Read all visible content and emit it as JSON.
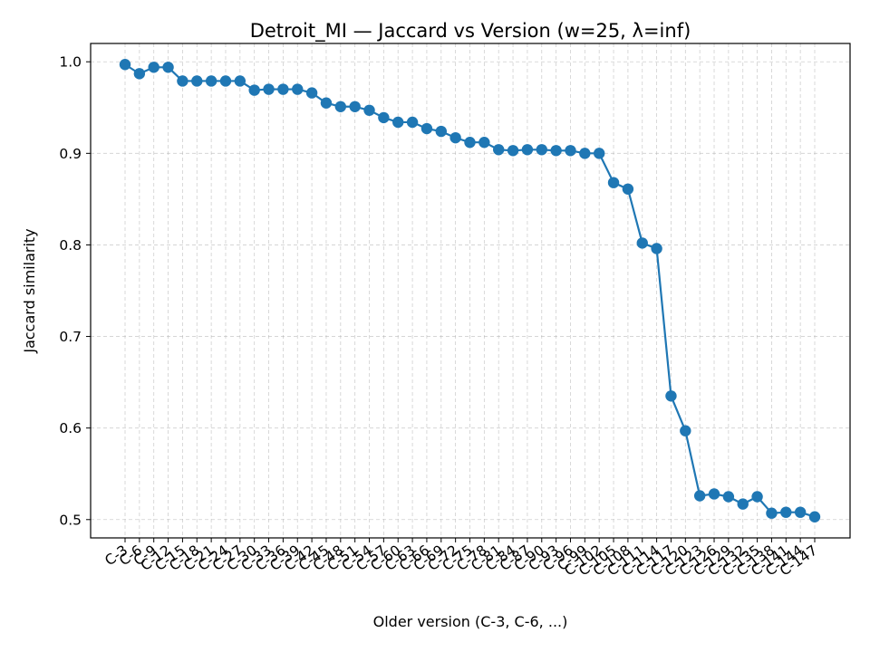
{
  "chart_data": {
    "type": "line",
    "title": "Detroit_MI — Jaccard vs Version (w=25, λ=inf)",
    "xlabel": "Older version (C-3, C-6, ...)",
    "ylabel": "Jaccard similarity",
    "ylim": [
      0.48,
      1.02
    ],
    "yticks": [
      0.5,
      0.6,
      0.7,
      0.8,
      0.9,
      1.0
    ],
    "ytick_labels": [
      "0.5",
      "0.6",
      "0.7",
      "0.8",
      "0.9",
      "1.0"
    ],
    "grid": true,
    "line_color": "#1f77b4",
    "categories": [
      "C-3",
      "C-6",
      "C-9",
      "C-12",
      "C-15",
      "C-18",
      "C-21",
      "C-24",
      "C-27",
      "C-30",
      "C-33",
      "C-36",
      "C-39",
      "C-42",
      "C-45",
      "C-48",
      "C-51",
      "C-54",
      "C-57",
      "C-60",
      "C-63",
      "C-66",
      "C-69",
      "C-72",
      "C-75",
      "C-78",
      "C-81",
      "C-84",
      "C-87",
      "C-90",
      "C-93",
      "C-96",
      "C-99",
      "C-102",
      "C-105",
      "C-108",
      "C-111",
      "C-114",
      "C-117",
      "C-120",
      "C-123",
      "C-126",
      "C-129",
      "C-132",
      "C-135",
      "C-138",
      "C-141",
      "C-144",
      "C-147"
    ],
    "values": [
      0.997,
      0.987,
      0.994,
      0.994,
      0.979,
      0.979,
      0.979,
      0.979,
      0.979,
      0.969,
      0.97,
      0.97,
      0.97,
      0.966,
      0.955,
      0.951,
      0.951,
      0.947,
      0.939,
      0.934,
      0.934,
      0.927,
      0.924,
      0.917,
      0.912,
      0.912,
      0.904,
      0.903,
      0.904,
      0.904,
      0.903,
      0.903,
      0.9,
      0.9,
      0.868,
      0.861,
      0.802,
      0.796,
      0.635,
      0.597,
      0.526,
      0.528,
      0.525,
      0.517,
      0.525,
      0.507,
      0.508,
      0.508,
      0.503
    ]
  }
}
